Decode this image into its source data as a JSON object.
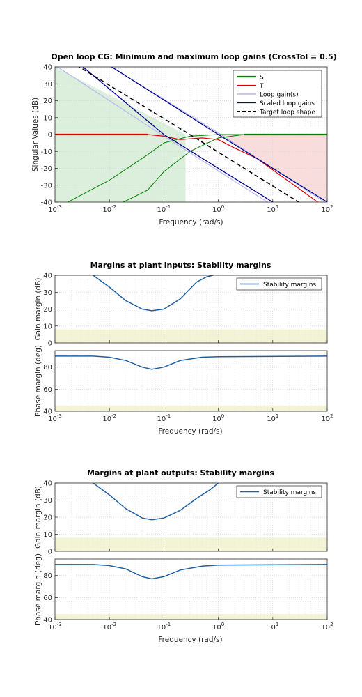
{
  "figure": {
    "xlabel": "Frequency (rad/s)",
    "xlabel_margins": "Frequency  (rad/s)",
    "colors": {
      "S": "#008000",
      "T": "#dd0000",
      "loop_gain": "#b8b8f0",
      "scaled": "#00008b",
      "target": "#000000",
      "stability": "#1f5f9f",
      "fill_green": "#dcefdc",
      "fill_red": "#f9dcdc",
      "fill_yellow": "#f3f3d6"
    }
  },
  "chart_data": [
    {
      "type": "line",
      "title": "Open loop CG: Minimum and maximum loop gains (CrossTol = 0.5)",
      "xlabel": "Frequency (rad/s)",
      "ylabel": "Singular Values (dB)",
      "xscale": "log",
      "xlim": [
        0.001,
        100
      ],
      "ylim": [
        -40,
        40
      ],
      "xticks": [
        "10^-3",
        "10^-2",
        "10^-1",
        "10^0",
        "10^1",
        "10^2"
      ],
      "yticks": [
        -40,
        -30,
        -20,
        -10,
        0,
        10,
        20,
        30,
        40
      ],
      "grid": true,
      "legend_position": "top-right",
      "legend": [
        "S",
        "T",
        "Loop gain(s)",
        "Scaled loop gains",
        "Target loop shape"
      ],
      "shaded_regions": [
        {
          "fill": "green",
          "description": "min gain bound below 0.25 rad/s",
          "x": [
            0.001,
            0.25
          ],
          "upper_y": [
            40,
            0
          ]
        },
        {
          "fill": "red",
          "description": "max gain bound above 1 rad/s",
          "x": [
            1,
            100
          ],
          "lower_y": [
            0,
            -40
          ]
        }
      ],
      "series": [
        {
          "name": "S",
          "x": [
            0.001,
            0.01,
            0.05,
            0.1,
            0.3,
            1,
            3,
            100
          ],
          "y": [
            -44,
            -27,
            -12,
            -5,
            -1,
            0,
            0,
            0
          ]
        },
        {
          "name": "S",
          "x": [
            0.01,
            0.05,
            0.1,
            0.3,
            1,
            3,
            100
          ],
          "y": [
            -44,
            -33,
            -22,
            -10,
            -2,
            0,
            0
          ]
        },
        {
          "name": "T",
          "x": [
            0.001,
            0.05,
            0.1,
            0.2,
            0.5,
            1,
            2,
            5,
            100
          ],
          "y": [
            0,
            0,
            -1,
            -3,
            -2,
            -3,
            -8,
            -14,
            -44
          ]
        },
        {
          "name": "Loop gain(s)",
          "x": [
            0.001,
            0.1,
            10,
            100
          ],
          "y": [
            41,
            -1,
            -42,
            -62
          ]
        },
        {
          "name": "Loop gain(s)",
          "x": [
            0.006,
            1,
            100
          ],
          "y": [
            45,
            1,
            -41
          ]
        },
        {
          "name": "Scaled loop gains",
          "x": [
            0.003,
            0.1,
            10,
            100
          ],
          "y": [
            41,
            0,
            -40,
            -60
          ]
        },
        {
          "name": "Scaled loop gains",
          "x": [
            0.011,
            1,
            100
          ],
          "y": [
            40,
            0,
            -40
          ]
        },
        {
          "name": "Target loop shape",
          "x": [
            0.0025,
            0.3,
            30,
            100
          ],
          "y": [
            41,
            0,
            -40,
            -50
          ]
        }
      ]
    },
    {
      "type": "line",
      "title": "Margins at plant inputs: Stability margins",
      "xlabel": "Frequency  (rad/s)",
      "xscale": "log",
      "xlim": [
        0.001,
        100
      ],
      "legend_position": "top-right",
      "legend": [
        "Stability margins"
      ],
      "grid": true,
      "subplots": [
        {
          "ylabel": "Gain margin (dB)",
          "ylim": [
            0,
            40
          ],
          "yticks": [
            0,
            10,
            20,
            30,
            40
          ],
          "shaded_y": [
            0,
            8
          ],
          "series": [
            {
              "name": "Stability margins",
              "x": [
                0.005,
                0.01,
                0.02,
                0.04,
                0.06,
                0.1,
                0.2,
                0.4,
                0.6,
                0.8
              ],
              "y": [
                40,
                33,
                25,
                20,
                19,
                20,
                26,
                36,
                39,
                40
              ]
            }
          ]
        },
        {
          "ylabel": "Phase margin (deg)",
          "ylim": [
            40,
            95
          ],
          "yticks": [
            40,
            60,
            80
          ],
          "shaded_y": [
            40,
            45
          ],
          "series": [
            {
              "name": "Stability margins",
              "x": [
                0.001,
                0.005,
                0.01,
                0.02,
                0.04,
                0.06,
                0.1,
                0.2,
                0.5,
                1,
                100
              ],
              "y": [
                90,
                90,
                89,
                86,
                80,
                78,
                80,
                86,
                89,
                89.5,
                90
              ]
            }
          ]
        }
      ]
    },
    {
      "type": "line",
      "title": "Margins at plant outputs: Stability margins",
      "xlabel": "Frequency  (rad/s)",
      "xscale": "log",
      "xlim": [
        0.001,
        100
      ],
      "legend_position": "top-right",
      "legend": [
        "Stability margins"
      ],
      "grid": true,
      "subplots": [
        {
          "ylabel": "Gain margin (dB)",
          "ylim": [
            0,
            40
          ],
          "yticks": [
            0,
            10,
            20,
            30,
            40
          ],
          "shaded_y": [
            0,
            8
          ],
          "series": [
            {
              "name": "Stability margins",
              "x": [
                0.005,
                0.01,
                0.02,
                0.04,
                0.06,
                0.1,
                0.2,
                0.4,
                0.7,
                1
              ],
              "y": [
                40,
                33,
                25,
                19.5,
                18.5,
                19.5,
                24,
                31,
                36,
                40
              ]
            }
          ]
        },
        {
          "ylabel": "Phase margin (deg)",
          "ylim": [
            40,
            95
          ],
          "yticks": [
            40,
            60,
            80
          ],
          "shaded_y": [
            40,
            45
          ],
          "series": [
            {
              "name": "Stability margins",
              "x": [
                0.001,
                0.005,
                0.01,
                0.02,
                0.04,
                0.06,
                0.1,
                0.2,
                0.5,
                1,
                100
              ],
              "y": [
                90,
                90,
                89,
                86,
                79,
                77,
                79,
                85,
                88.5,
                89.5,
                90
              ]
            }
          ]
        }
      ]
    }
  ]
}
